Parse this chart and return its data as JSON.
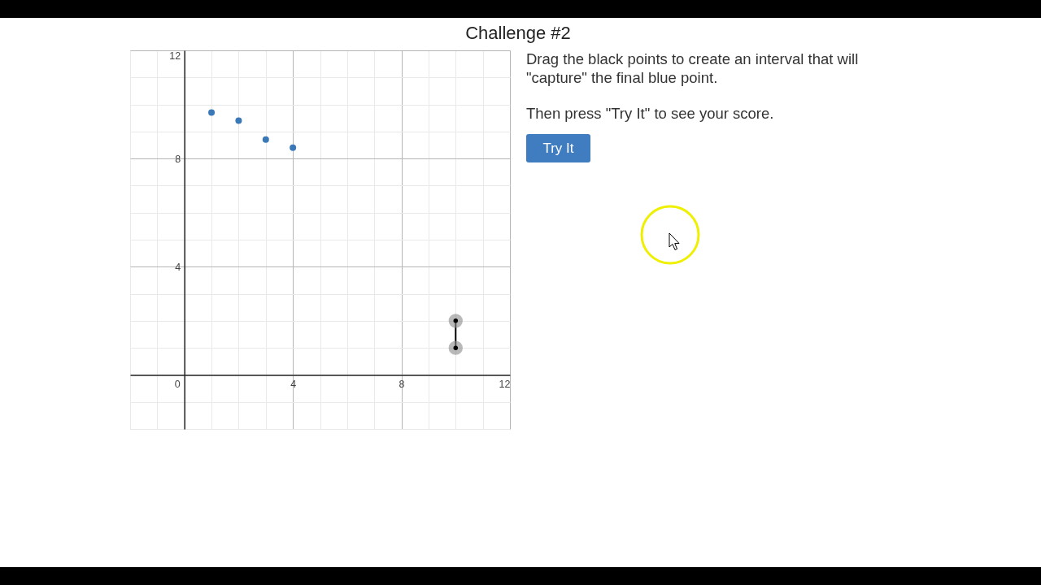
{
  "chart_data": {
    "type": "scatter",
    "title": "Challenge #2",
    "xlim": [
      -2,
      12
    ],
    "ylim": [
      -2,
      12
    ],
    "xticks": [
      0,
      4,
      8,
      12
    ],
    "yticks": [
      4,
      8,
      12
    ],
    "grid": true,
    "marker": "circle",
    "series": [
      {
        "color": "#3b78b8",
        "x": [
          1,
          2,
          3,
          4
        ],
        "values": [
          9.7,
          9.4,
          8.7,
          8.4
        ]
      },
      {
        "type": "line",
        "color": "#000000",
        "x": [
          10,
          10
        ],
        "values": [
          2,
          1
        ]
      }
    ],
    "annotations": [
      "Drag the black points to create an interval that will \"capture\" the final blue point.",
      "Then press \"Try It\" to see your score.",
      "Try It"
    ]
  }
}
